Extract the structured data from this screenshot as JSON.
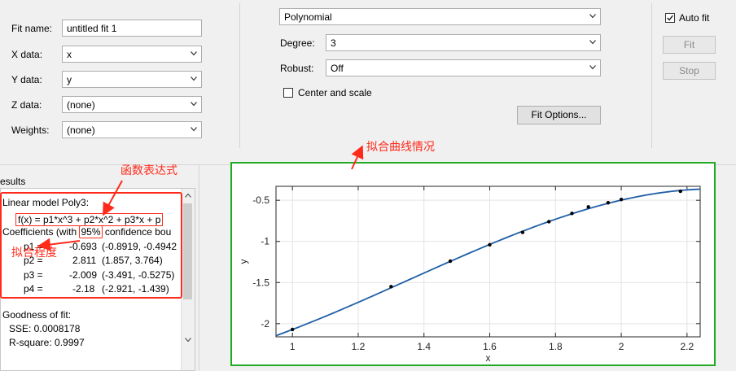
{
  "fit_panel": {
    "fit_name_label": "Fit name:",
    "fit_name_value": "untitled fit 1",
    "x_data_label": "X data:",
    "x_data_value": "x",
    "y_data_label": "Y data:",
    "y_data_value": "y",
    "z_data_label": "Z data:",
    "z_data_value": "(none)",
    "weights_label": "Weights:",
    "weights_value": "(none)"
  },
  "model_panel": {
    "fit_type": "Polynomial",
    "degree_label": "Degree:",
    "degree_value": "3",
    "robust_label": "Robust:",
    "robust_value": "Off",
    "center_scale_label": "Center and scale",
    "center_scale_checked": false,
    "fit_options_label": "Fit Options..."
  },
  "actions": {
    "auto_fit_label": "Auto fit",
    "auto_fit_checked": true,
    "fit_label": "Fit",
    "stop_label": "Stop"
  },
  "results": {
    "header": "esults",
    "model_line": "Linear model Poly3:",
    "formula": "f(x) = p1*x^3 + p2*x^2 + p3*x + p",
    "coef_prefix": "Coefficients (with ",
    "coef_percent": "95%",
    "coef_suffix": " confidence bou",
    "rows": [
      {
        "name": "p1 =",
        "value": "-0.693",
        "ci": "(-0.8919, -0.4942"
      },
      {
        "name": "p2 =",
        "value": "2.811",
        "ci": "(1.857, 3.764)"
      },
      {
        "name": "p3 =",
        "value": "-2.009",
        "ci": "(-3.491, -0.5275)"
      },
      {
        "name": "p4 =",
        "value": "-2.18",
        "ci": "(-2.921, -1.439)"
      }
    ],
    "gof_title": "Goodness of fit:",
    "sse": "SSE: 0.0008178",
    "rsquare": "R-square: 0.9997"
  },
  "annotations": {
    "function_expr": "函数表达式",
    "fit_degree": "拟合程度",
    "fit_curve": "拟合曲线情况",
    "color": "#ff2a1a"
  },
  "colors": {
    "curve": "#1f5fa6",
    "points": "#000000",
    "highlight_green": "#22aa22",
    "highlight_red": "#ff2a1a"
  },
  "chart_data": {
    "type": "scatter",
    "xlabel": "x",
    "ylabel": "y",
    "xlim": [
      0.95,
      2.24
    ],
    "ylim": [
      -2.16,
      -0.33
    ],
    "xticks": [
      1,
      1.2,
      1.4,
      1.6,
      1.8,
      2,
      2.2
    ],
    "xtick_labels": [
      "1",
      "1.2",
      "1.4",
      "1.6",
      "1.8",
      "2",
      "2.2"
    ],
    "yticks": [
      -2,
      -1.5,
      -1,
      -0.5
    ],
    "ytick_labels": [
      "-2",
      "-1.5",
      "-1",
      "-0.5"
    ],
    "grid": true,
    "series": [
      {
        "points": [
          {
            "x": 1.0,
            "y": -2.07
          },
          {
            "x": 1.3,
            "y": -1.55
          },
          {
            "x": 1.48,
            "y": -1.24
          },
          {
            "x": 1.6,
            "y": -1.04
          },
          {
            "x": 1.7,
            "y": -0.89
          },
          {
            "x": 1.78,
            "y": -0.76
          },
          {
            "x": 1.85,
            "y": -0.66
          },
          {
            "x": 1.9,
            "y": -0.58
          },
          {
            "x": 1.96,
            "y": -0.53
          },
          {
            "x": 2.0,
            "y": -0.49
          },
          {
            "x": 2.18,
            "y": -0.39
          }
        ]
      }
    ],
    "fit_coefficients": {
      "p1": -0.693,
      "p2": 2.811,
      "p3": -2.009,
      "p4": -2.18
    }
  }
}
